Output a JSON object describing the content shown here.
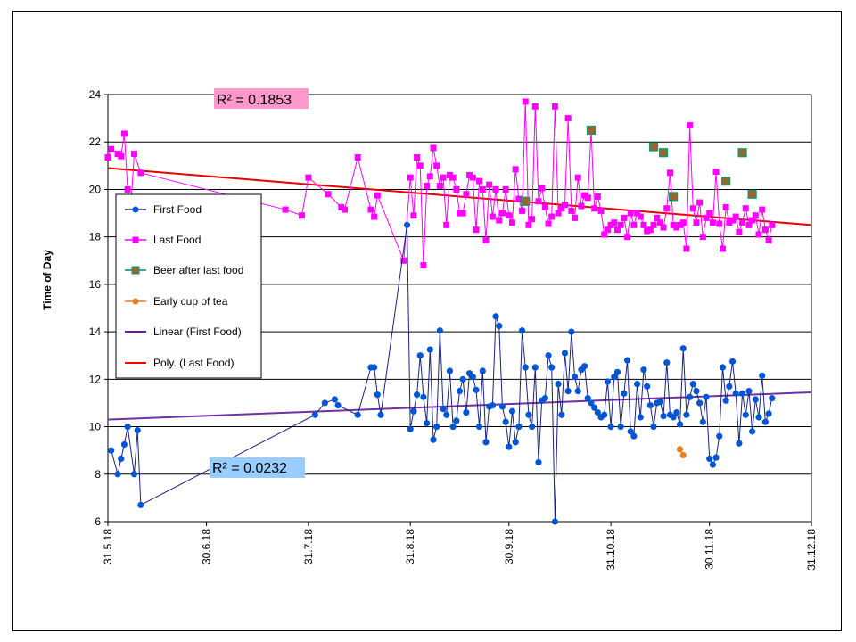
{
  "chart_data": {
    "type": "line",
    "title": "",
    "ylabel": "Time of Day",
    "xlabel": "",
    "ylim": [
      6,
      24
    ],
    "yticks": [
      6,
      8,
      10,
      12,
      14,
      16,
      18,
      20,
      22,
      24
    ],
    "xlim_day": [
      0,
      214
    ],
    "xticks": [
      {
        "label": "31.5.18",
        "day": 0
      },
      {
        "label": "30.6.18",
        "day": 30
      },
      {
        "label": "31.7.18",
        "day": 61
      },
      {
        "label": "31.8.18",
        "day": 92
      },
      {
        "label": "30.9.18",
        "day": 122
      },
      {
        "label": "31.10.18",
        "day": 153
      },
      {
        "label": "30.11.18",
        "day": 183
      },
      {
        "label": "31.12.18",
        "day": 214
      }
    ],
    "legend": [
      {
        "name": "First Food",
        "color": "#0055d4",
        "marker": "circle",
        "line": true
      },
      {
        "name": "Last Food",
        "color": "#ff00ff",
        "marker": "square",
        "line": true
      },
      {
        "name": "Beer after last food",
        "color": "#008080",
        "marker": "square-brown",
        "line": true
      },
      {
        "name": "Early cup of  tea",
        "color": "#e67e22",
        "marker": "circle",
        "line": true
      },
      {
        "name": "Linear (First Food)",
        "color": "#6a1b9a",
        "marker": "none",
        "line": true
      },
      {
        "name": "Poly. (Last Food)",
        "color": "#ff0000",
        "marker": "none",
        "line": true
      }
    ],
    "annotations": [
      {
        "text": "R² = 0.1853",
        "bg": "#ff99cc"
      },
      {
        "text": "R² = 0.0232",
        "bg": "#99ccff"
      }
    ],
    "series": [
      {
        "name": "First Food",
        "color": "#0055d4",
        "points": [
          [
            1,
            9.0
          ],
          [
            3,
            8.0
          ],
          [
            4,
            8.65
          ],
          [
            5,
            9.25
          ],
          [
            6,
            10.0
          ],
          [
            8,
            8.0
          ],
          [
            9,
            9.85
          ],
          [
            10,
            6.7
          ],
          [
            63,
            10.5
          ],
          [
            66,
            11.0
          ],
          [
            69,
            11.15
          ],
          [
            70,
            10.9
          ],
          [
            76,
            10.5
          ],
          [
            80,
            12.5
          ],
          [
            81,
            12.5
          ],
          [
            82,
            11.35
          ],
          [
            83,
            10.5
          ],
          [
            91,
            18.5
          ],
          [
            92,
            9.9
          ],
          [
            93,
            10.65
          ],
          [
            94,
            11.35
          ],
          [
            95,
            13.0
          ],
          [
            96,
            11.25
          ],
          [
            97,
            10.15
          ],
          [
            98,
            13.25
          ],
          [
            99,
            9.45
          ],
          [
            100,
            10.0
          ],
          [
            101,
            14.05
          ],
          [
            102,
            10.75
          ],
          [
            103,
            10.5
          ],
          [
            104,
            12.35
          ],
          [
            105,
            10.0
          ],
          [
            106,
            10.25
          ],
          [
            107,
            11.5
          ],
          [
            108,
            12.0
          ],
          [
            109,
            10.6
          ],
          [
            110,
            12.25
          ],
          [
            111,
            12.1
          ],
          [
            112,
            11.55
          ],
          [
            113,
            10.0
          ],
          [
            114,
            12.35
          ],
          [
            115,
            9.35
          ],
          [
            116,
            10.85
          ],
          [
            117,
            10.9
          ],
          [
            118,
            14.65
          ],
          [
            119,
            14.25
          ],
          [
            120,
            10.85
          ],
          [
            121,
            10.2
          ],
          [
            122,
            9.15
          ],
          [
            123,
            10.65
          ],
          [
            124,
            9.35
          ],
          [
            125,
            10.0
          ],
          [
            126,
            14.05
          ],
          [
            127,
            12.5
          ],
          [
            128,
            10.5
          ],
          [
            129,
            10.0
          ],
          [
            130,
            12.5
          ],
          [
            131,
            8.5
          ],
          [
            132,
            11.1
          ],
          [
            133,
            11.2
          ],
          [
            134,
            13.0
          ],
          [
            135,
            12.5
          ],
          [
            136,
            5.2
          ],
          [
            137,
            11.8
          ],
          [
            138,
            10.5
          ],
          [
            139,
            13.1
          ],
          [
            140,
            11.5
          ],
          [
            141,
            14.0
          ],
          [
            142,
            12.1
          ],
          [
            143,
            11.5
          ],
          [
            144,
            12.4
          ],
          [
            145,
            12.55
          ],
          [
            146,
            11.2
          ],
          [
            147,
            11.0
          ],
          [
            148,
            10.8
          ],
          [
            149,
            10.6
          ],
          [
            150,
            10.4
          ],
          [
            151,
            10.5
          ],
          [
            152,
            11.9
          ],
          [
            153,
            10.0
          ],
          [
            154,
            12.1
          ],
          [
            155,
            12.3
          ],
          [
            156,
            10.0
          ],
          [
            157,
            11.4
          ],
          [
            158,
            12.8
          ],
          [
            159,
            9.8
          ],
          [
            160,
            9.6
          ],
          [
            161,
            11.8
          ],
          [
            162,
            10.4
          ],
          [
            163,
            12.4
          ],
          [
            164,
            11.7
          ],
          [
            165,
            10.9
          ],
          [
            166,
            10.0
          ],
          [
            167,
            11.0
          ],
          [
            168,
            11.05
          ],
          [
            169,
            10.45
          ],
          [
            170,
            12.7
          ],
          [
            171,
            10.5
          ],
          [
            172,
            10.4
          ],
          [
            173,
            10.6
          ],
          [
            174,
            10.1
          ],
          [
            175,
            13.3
          ],
          [
            176,
            10.5
          ],
          [
            177,
            11.25
          ],
          [
            178,
            11.8
          ],
          [
            179,
            11.5
          ],
          [
            180,
            11.0
          ],
          [
            181,
            10.2
          ],
          [
            182,
            11.25
          ],
          [
            183,
            8.65
          ],
          [
            184,
            8.4
          ],
          [
            185,
            8.7
          ],
          [
            186,
            9.6
          ],
          [
            187,
            12.5
          ],
          [
            188,
            11.1
          ],
          [
            189,
            11.7
          ],
          [
            190,
            12.75
          ],
          [
            191,
            11.4
          ],
          [
            192,
            9.3
          ],
          [
            193,
            11.4
          ],
          [
            194,
            10.5
          ],
          [
            195,
            11.5
          ],
          [
            196,
            9.8
          ],
          [
            197,
            11.15
          ],
          [
            198,
            10.4
          ],
          [
            199,
            12.15
          ],
          [
            200,
            10.2
          ],
          [
            201,
            10.55
          ],
          [
            202,
            11.2
          ]
        ]
      },
      {
        "name": "Last Food",
        "color": "#ff00ff",
        "points": [
          [
            0,
            21.35
          ],
          [
            1,
            21.7
          ],
          [
            3,
            21.5
          ],
          [
            4,
            21.4
          ],
          [
            5,
            22.35
          ],
          [
            6,
            20.0
          ],
          [
            7,
            19.3
          ],
          [
            8,
            21.5
          ],
          [
            10,
            20.7
          ],
          [
            54,
            19.15
          ],
          [
            59,
            18.9
          ],
          [
            61,
            20.5
          ],
          [
            67,
            19.8
          ],
          [
            71,
            19.25
          ],
          [
            72,
            19.15
          ],
          [
            76,
            21.35
          ],
          [
            80,
            19.15
          ],
          [
            81,
            18.85
          ],
          [
            82,
            19.75
          ],
          [
            90,
            17.0
          ],
          [
            92,
            20.5
          ],
          [
            93,
            18.9
          ],
          [
            94,
            21.35
          ],
          [
            95,
            21.0
          ],
          [
            96,
            16.8
          ],
          [
            97,
            20.15
          ],
          [
            98,
            20.55
          ],
          [
            99,
            21.75
          ],
          [
            100,
            21.0
          ],
          [
            101,
            20.15
          ],
          [
            102,
            20.5
          ],
          [
            103,
            18.5
          ],
          [
            104,
            20.6
          ],
          [
            105,
            20.5
          ],
          [
            106,
            20.0
          ],
          [
            107,
            19.0
          ],
          [
            108,
            19.0
          ],
          [
            109,
            19.8
          ],
          [
            110,
            20.6
          ],
          [
            111,
            20.5
          ],
          [
            112,
            18.3
          ],
          [
            113,
            20.35
          ],
          [
            114,
            20.0
          ],
          [
            115,
            17.85
          ],
          [
            116,
            20.2
          ],
          [
            117,
            18.85
          ],
          [
            118,
            20.0
          ],
          [
            119,
            18.7
          ],
          [
            120,
            19.0
          ],
          [
            121,
            20.0
          ],
          [
            122,
            18.9
          ],
          [
            123,
            18.6
          ],
          [
            124,
            20.85
          ],
          [
            125,
            19.6
          ],
          [
            126,
            19.1
          ],
          [
            127,
            23.7
          ],
          [
            128,
            18.5
          ],
          [
            129,
            18.75
          ],
          [
            130,
            23.5
          ],
          [
            131,
            19.5
          ],
          [
            132,
            20.05
          ],
          [
            133,
            19.25
          ],
          [
            134,
            18.55
          ],
          [
            135,
            18.85
          ],
          [
            136,
            23.5
          ],
          [
            137,
            19.0
          ],
          [
            138,
            19.2
          ],
          [
            139,
            19.35
          ],
          [
            140,
            23.0
          ],
          [
            141,
            19.1
          ],
          [
            142,
            18.8
          ],
          [
            143,
            20.5
          ],
          [
            144,
            19.3
          ],
          [
            145,
            19.75
          ],
          [
            146,
            19.65
          ],
          [
            147,
            22.5
          ],
          [
            148,
            19.2
          ],
          [
            149,
            19.7
          ],
          [
            150,
            19.1
          ],
          [
            151,
            18.1
          ],
          [
            152,
            18.3
          ],
          [
            153,
            18.5
          ],
          [
            154,
            18.6
          ],
          [
            155,
            18.3
          ],
          [
            156,
            18.5
          ],
          [
            157,
            18.8
          ],
          [
            158,
            18.0
          ],
          [
            159,
            19.0
          ],
          [
            160,
            18.5
          ],
          [
            161,
            19.0
          ],
          [
            162,
            18.85
          ],
          [
            163,
            18.5
          ],
          [
            164,
            18.25
          ],
          [
            165,
            18.3
          ],
          [
            166,
            18.5
          ],
          [
            167,
            18.8
          ],
          [
            168,
            18.6
          ],
          [
            169,
            18.4
          ],
          [
            170,
            19.2
          ],
          [
            171,
            20.7
          ],
          [
            172,
            18.5
          ],
          [
            173,
            18.4
          ],
          [
            174,
            18.5
          ],
          [
            175,
            18.6
          ],
          [
            176,
            17.5
          ],
          [
            177,
            22.7
          ],
          [
            178,
            19.2
          ],
          [
            179,
            18.6
          ],
          [
            180,
            19.45
          ],
          [
            181,
            18.0
          ],
          [
            182,
            18.8
          ],
          [
            183,
            19.0
          ],
          [
            184,
            18.6
          ],
          [
            185,
            20.75
          ],
          [
            186,
            18.55
          ],
          [
            187,
            17.5
          ],
          [
            188,
            19.25
          ],
          [
            189,
            18.6
          ],
          [
            190,
            18.7
          ],
          [
            191,
            18.85
          ],
          [
            192,
            18.2
          ],
          [
            193,
            18.6
          ],
          [
            194,
            19.2
          ],
          [
            195,
            18.5
          ],
          [
            196,
            18.7
          ],
          [
            197,
            18.9
          ],
          [
            198,
            18.1
          ],
          [
            199,
            19.15
          ],
          [
            200,
            18.3
          ],
          [
            201,
            17.85
          ],
          [
            202,
            18.5
          ]
        ]
      },
      {
        "name": "Beer after last food",
        "color": "#996633",
        "points": [
          [
            127,
            19.5
          ],
          [
            147,
            22.5
          ],
          [
            166,
            21.8
          ],
          [
            169,
            21.55
          ],
          [
            172,
            19.7
          ],
          [
            188,
            20.35
          ],
          [
            193,
            21.55
          ],
          [
            196,
            19.8
          ]
        ]
      },
      {
        "name": "Early cup of  tea",
        "color": "#e67e22",
        "points": [
          [
            174,
            9.05
          ],
          [
            175,
            8.8
          ]
        ]
      }
    ],
    "trendlines": [
      {
        "name": "Linear (First Food)",
        "color": "#7030a0",
        "from": [
          0,
          10.3
        ],
        "to": [
          214,
          11.45
        ]
      },
      {
        "name": "Poly. (Last Food)",
        "color": "#e60000",
        "from": [
          0,
          20.9
        ],
        "to": [
          214,
          18.5
        ]
      }
    ]
  }
}
